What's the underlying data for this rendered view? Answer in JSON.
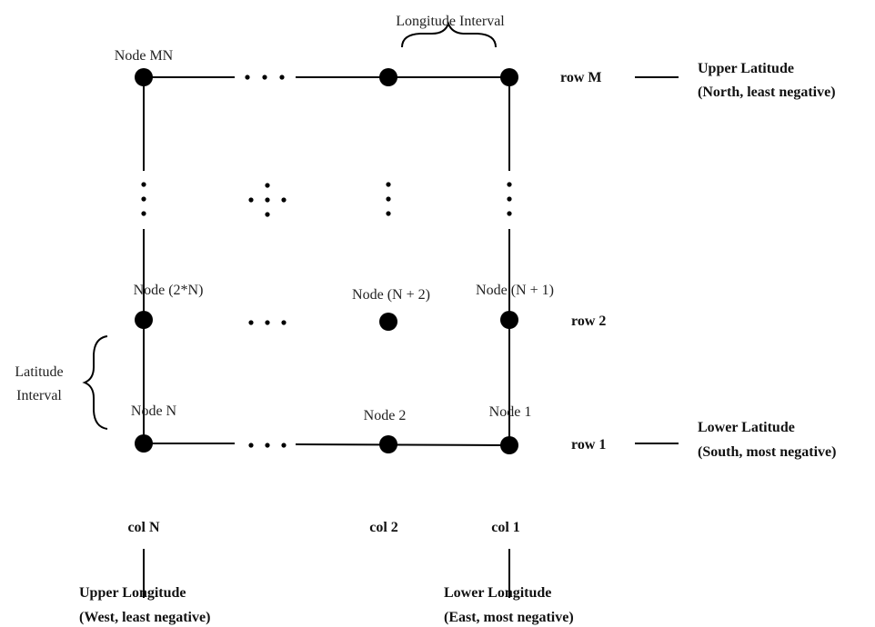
{
  "top": {
    "longitude_interval": "Longitude Interval"
  },
  "nodes": {
    "mn": "Node MN",
    "two_n": "Node (2*N)",
    "n_plus_2": "Node (N + 2)",
    "n_plus_1": "Node (N + 1)",
    "n": "Node N",
    "two": "Node 2",
    "one": "Node 1"
  },
  "rows": {
    "m": "row M",
    "two": "row 2",
    "one": "row 1"
  },
  "cols": {
    "n": "col N",
    "two": "col 2",
    "one": "col 1"
  },
  "latitude": {
    "upper_line1": "Upper Latitude",
    "upper_line2": "(North, least negative)",
    "lower_line1": "Lower Latitude",
    "lower_line2": "(South, most negative)",
    "interval_line1": "Latitude",
    "interval_line2": "Interval"
  },
  "longitude": {
    "upper_line1": "Upper Longitude",
    "upper_line2": "(West, least negative)",
    "lower_line1": "Lower Longitude",
    "lower_line2": "(East, most negative)"
  }
}
